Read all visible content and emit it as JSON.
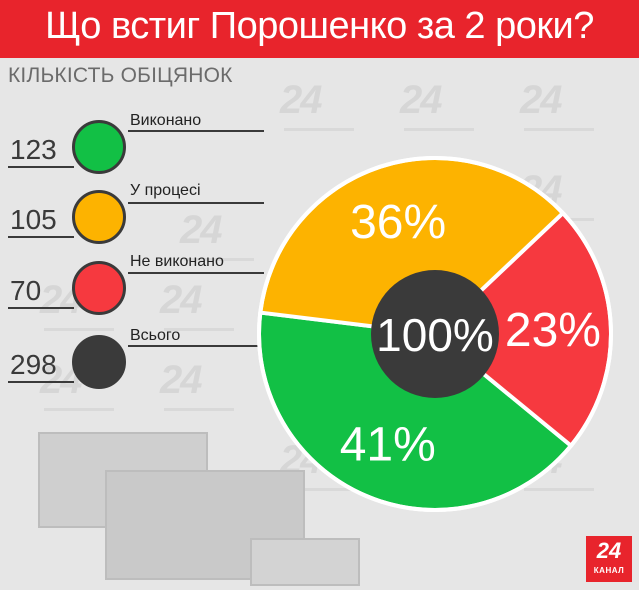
{
  "header": {
    "title": "Що встиг Порошенко за 2 роки?"
  },
  "legend": {
    "title": "КІЛЬКІСТЬ ОБІЦЯНОК",
    "items": [
      {
        "label": "Виконано",
        "value": "123",
        "color": "#12c045"
      },
      {
        "label": "У процесі",
        "value": "105",
        "color": "#fdb300"
      },
      {
        "label": "Не виконано",
        "value": "70",
        "color": "#f6393f"
      },
      {
        "label": "Всього",
        "value": "298",
        "color": "#3a3a3a"
      }
    ]
  },
  "chart_data": {
    "type": "pie",
    "center_label": "100%",
    "slices": [
      {
        "label": "Виконано",
        "value": 41,
        "display": "41%",
        "color": "#12c045"
      },
      {
        "label": "Не виконано",
        "value": 23,
        "display": "23%",
        "color": "#f6393f"
      },
      {
        "label": "У процесі",
        "value": 36,
        "display": "36%",
        "color": "#fdb300"
      }
    ],
    "center_color": "#3a3a3a"
  },
  "logo": {
    "text": "24",
    "subtext": "КАНАЛ",
    "color": "#e8242c"
  },
  "watermark_text": "24"
}
